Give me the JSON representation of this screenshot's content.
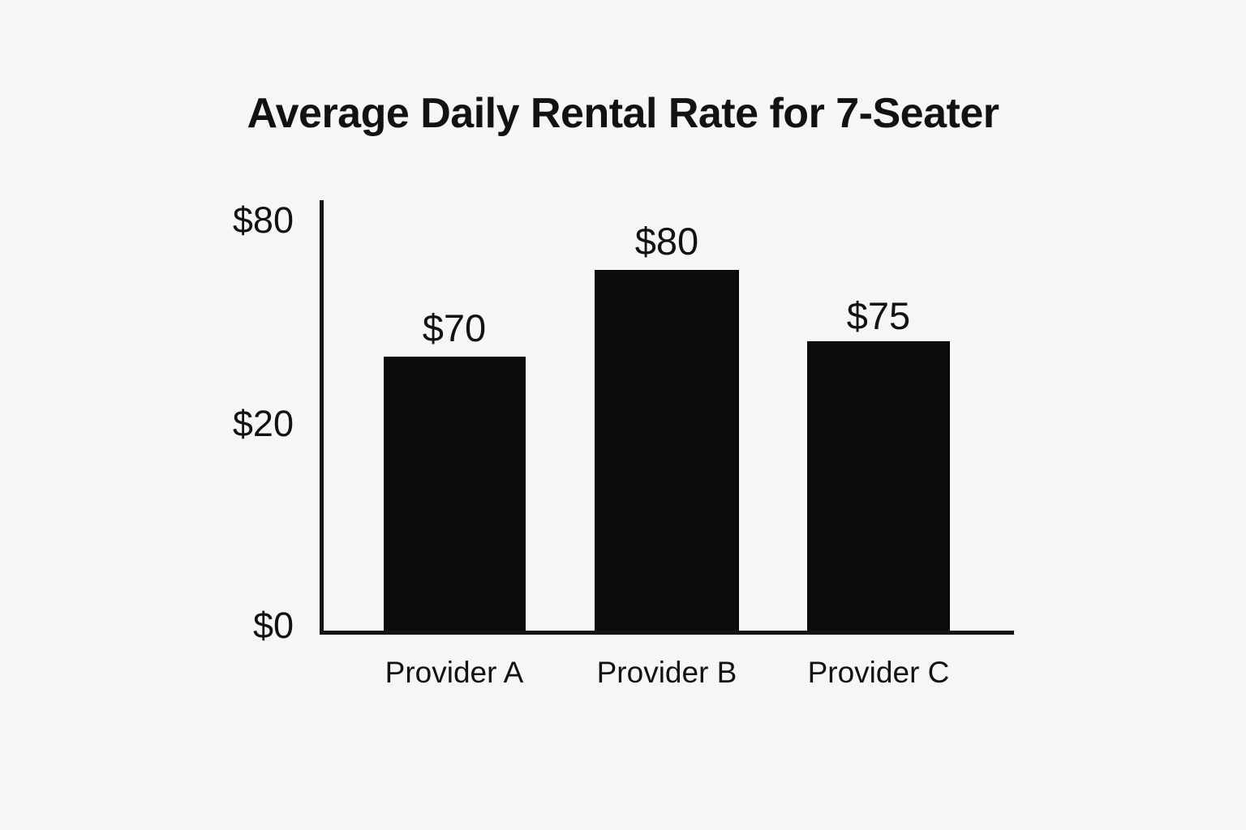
{
  "page": {
    "background_color": "#f7f6f4",
    "text_color": "#121212"
  },
  "chart_data": {
    "type": "bar",
    "title": "Average Daily Rental Rate for 7-Seater",
    "categories": [
      "Provider A",
      "Provider B",
      "Provider C"
    ],
    "values": [
      70,
      80,
      75
    ],
    "value_labels": [
      "$70",
      "$80",
      "$75"
    ],
    "y_ticks": [
      "$80",
      "$20",
      "$0"
    ],
    "xlabel": "",
    "ylabel": "",
    "ylim": [
      0,
      80
    ],
    "currency": "USD",
    "grid": false,
    "legend": false,
    "bar_color": "#0b0b0b",
    "axis_color": "#141414",
    "layout": "vertical bars, value labels above bars, y-axis ticks on left, category labels below x-axis"
  }
}
